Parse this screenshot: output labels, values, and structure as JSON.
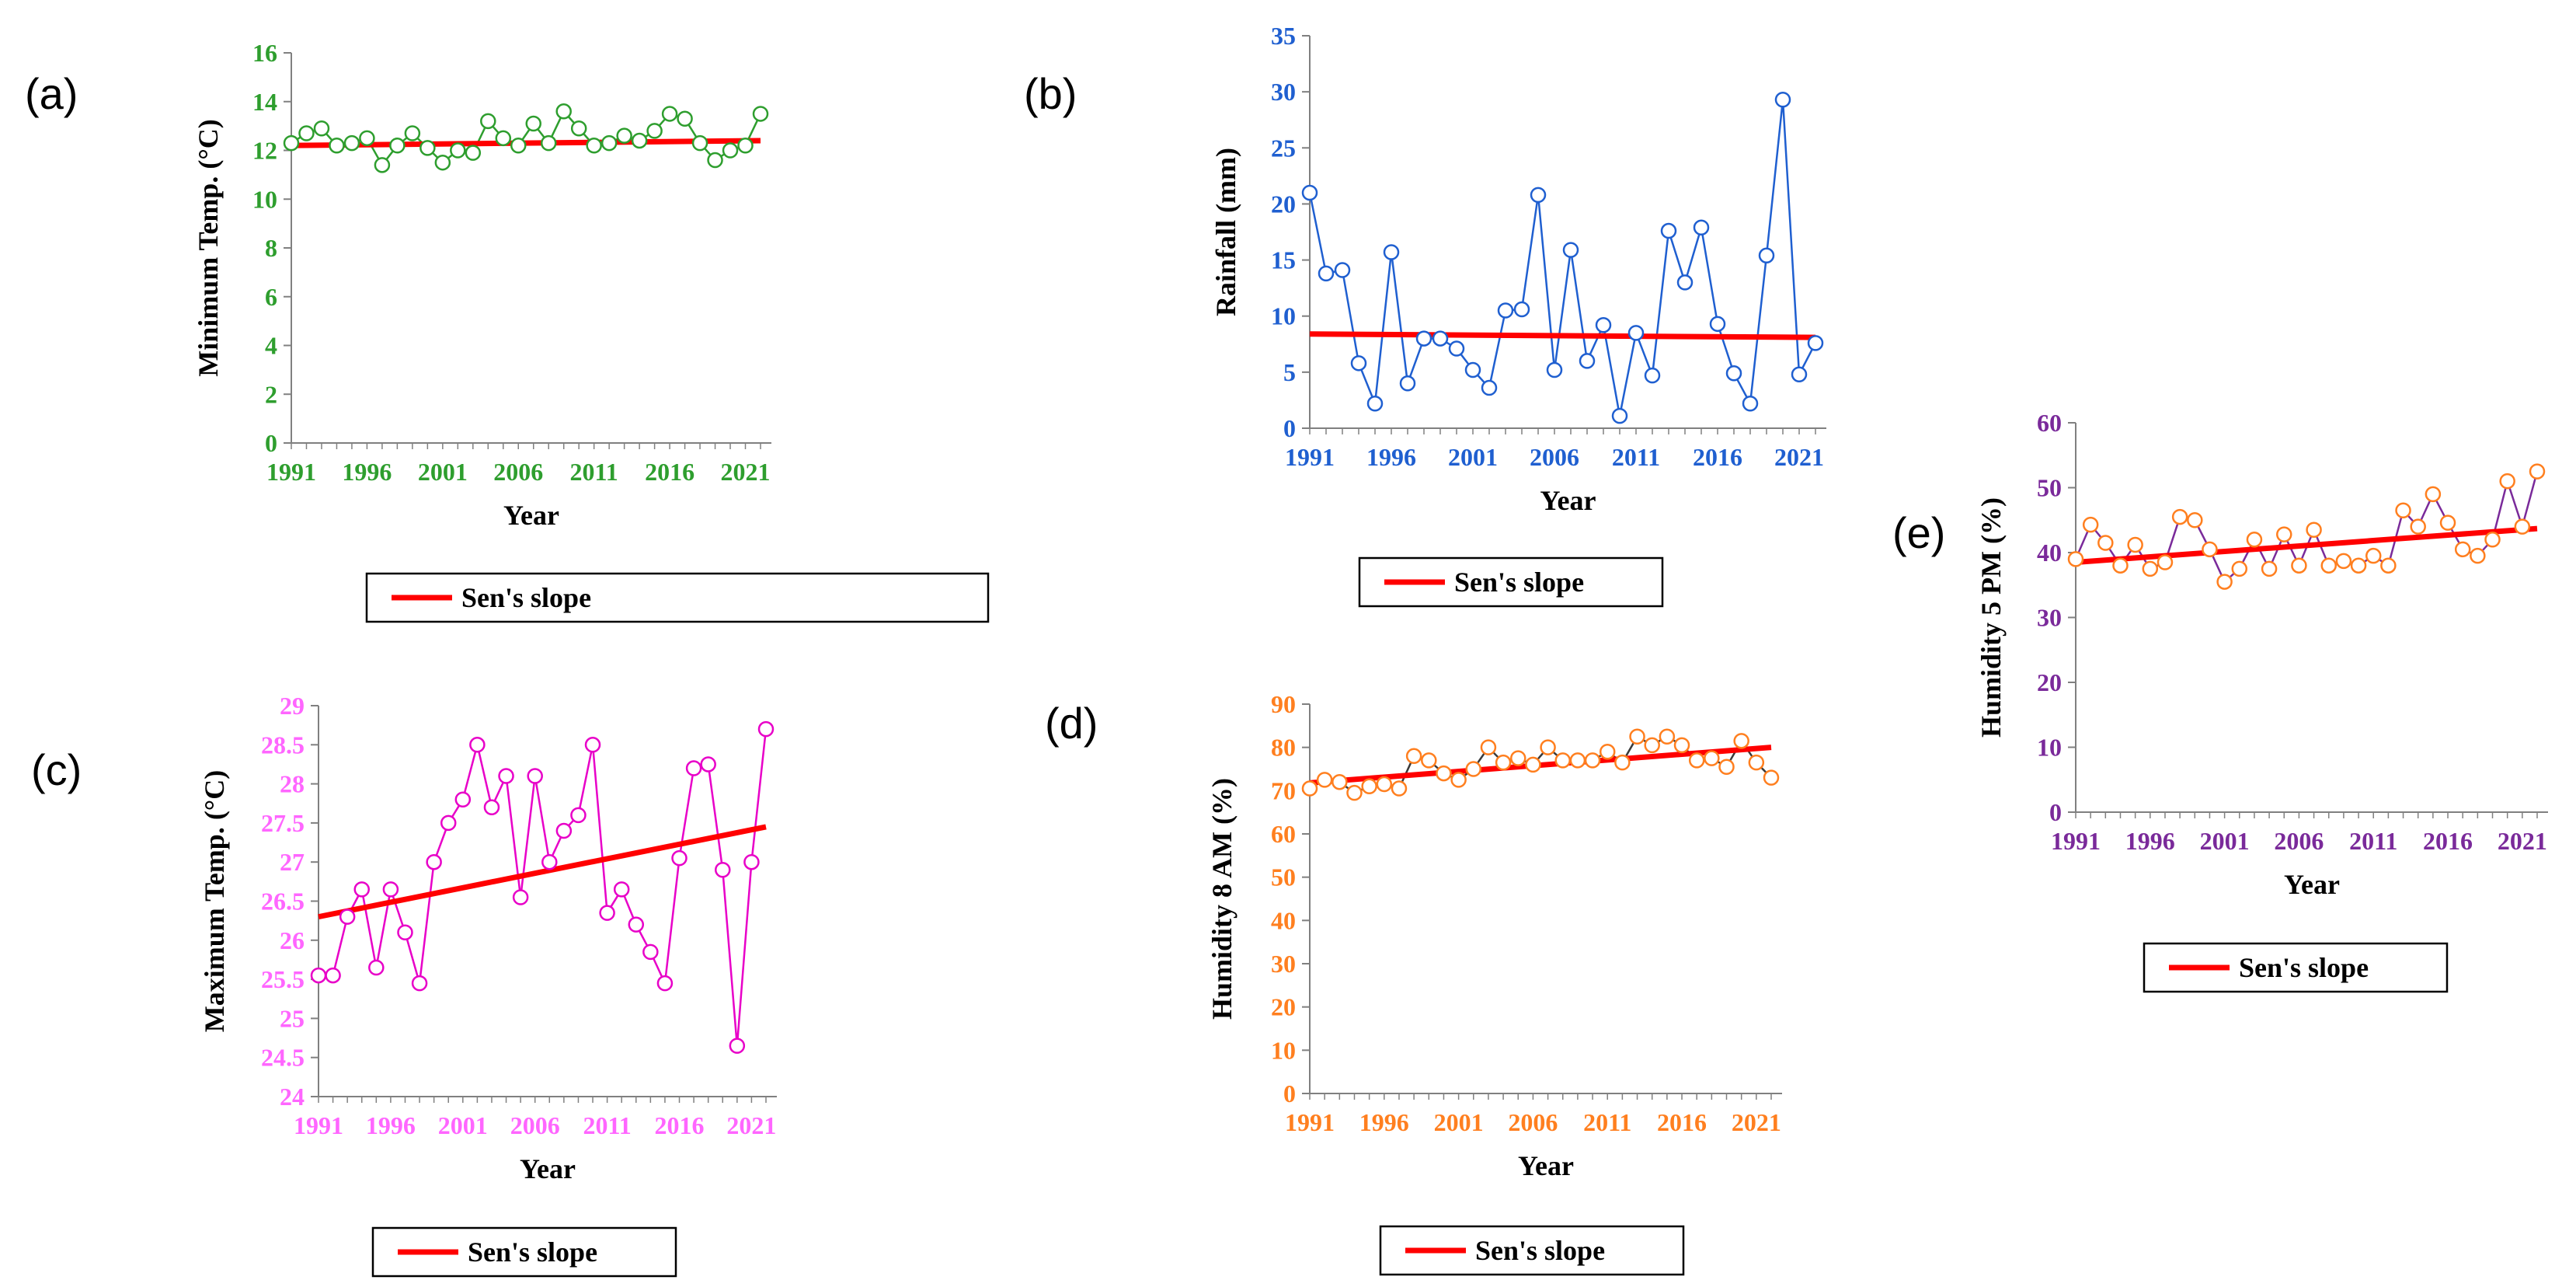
{
  "colors": {
    "trend": "#FF0000",
    "axis": "#808080",
    "minimum_temp": "#2E9E2E",
    "rainfall": "#1F5FD0",
    "maximum_temp": "#E800C8",
    "maximum_temp_text": "#FF66FF",
    "humidity_8am_marker": "#FF7F1F",
    "humidity_8am_line": "#3A3A3A",
    "humidity_5pm_marker": "#FF7F1F",
    "humidity_5pm_line": "#7A2A9A",
    "humidity_5pm_text": "#7A2A9A"
  },
  "legend_label": "Sen's slope",
  "chart_data": [
    {
      "panel": "(a)",
      "type": "line",
      "xlabel": "Year",
      "ylabel": "Minimum Temp.  (°C)",
      "ylim": [
        0,
        16
      ],
      "yticks": [
        "0",
        "2",
        "4",
        "6",
        "8",
        "10",
        "12",
        "14",
        "16"
      ],
      "xticks": [
        "1991",
        "1996",
        "2001",
        "2006",
        "2011",
        "2016",
        "2021"
      ],
      "x": [
        1991,
        1992,
        1993,
        1994,
        1995,
        1996,
        1997,
        1998,
        1999,
        2000,
        2001,
        2002,
        2003,
        2004,
        2005,
        2006,
        2007,
        2008,
        2009,
        2010,
        2011,
        2012,
        2013,
        2014,
        2015,
        2016,
        2017,
        2018,
        2019,
        2020,
        2021,
        2022
      ],
      "series": [
        {
          "values": [
            12.3,
            12.7,
            12.9,
            12.2,
            12.3,
            12.5,
            11.4,
            12.2,
            12.7,
            12.1,
            11.5,
            12.0,
            11.9,
            13.2,
            12.5,
            12.2,
            13.1,
            12.3,
            13.6,
            12.9,
            12.2,
            12.3,
            12.6,
            12.4,
            12.8,
            13.5,
            13.3,
            12.3,
            11.6,
            12.0,
            12.2,
            13.5
          ]
        }
      ],
      "trend": {
        "name": "Sen's slope",
        "x": [
          1991,
          2022
        ],
        "values": [
          12.2,
          12.4
        ]
      },
      "legend": "bottom"
    },
    {
      "panel": "(b)",
      "type": "line",
      "xlabel": "Year",
      "ylabel": "Rainfall (mm)",
      "ylim": [
        0,
        35
      ],
      "yticks": [
        "0",
        "5",
        "10",
        "15",
        "20",
        "25",
        "30",
        "35"
      ],
      "xticks": [
        "1991",
        "1996",
        "2001",
        "2006",
        "2011",
        "2016",
        "2021"
      ],
      "x": [
        1991,
        1992,
        1993,
        1994,
        1995,
        1996,
        1997,
        1998,
        1999,
        2000,
        2001,
        2002,
        2003,
        2004,
        2005,
        2006,
        2007,
        2008,
        2009,
        2010,
        2011,
        2012,
        2013,
        2014,
        2015,
        2016,
        2017,
        2018,
        2019,
        2020,
        2021,
        2022
      ],
      "series": [
        {
          "values": [
            21.0,
            13.8,
            14.1,
            5.8,
            2.2,
            15.7,
            4.0,
            8.0,
            8.0,
            7.1,
            5.2,
            3.6,
            10.5,
            10.6,
            20.8,
            5.2,
            15.9,
            6.0,
            9.2,
            1.1,
            8.5,
            4.7,
            17.6,
            13.0,
            17.9,
            9.3,
            4.9,
            2.2,
            15.4,
            29.3,
            4.8,
            7.6
          ]
        }
      ],
      "trend": {
        "name": "Sen's slope",
        "x": [
          1991,
          2022
        ],
        "values": [
          8.4,
          8.1
        ]
      },
      "legend": "bottom"
    },
    {
      "panel": "(c)",
      "type": "line",
      "xlabel": "Year",
      "ylabel": "Maximum Temp.  (°C)",
      "ylim": [
        24,
        29
      ],
      "yticks": [
        "24",
        "24.5",
        "25",
        "25.5",
        "26",
        "26.5",
        "27",
        "27.5",
        "28",
        "28.5",
        "29"
      ],
      "xticks": [
        "1991",
        "1996",
        "2001",
        "2006",
        "2011",
        "2016",
        "2021"
      ],
      "x": [
        1991,
        1992,
        1993,
        1994,
        1995,
        1996,
        1997,
        1998,
        1999,
        2000,
        2001,
        2002,
        2003,
        2004,
        2005,
        2006,
        2007,
        2008,
        2009,
        2010,
        2011,
        2012,
        2013,
        2014,
        2015,
        2016,
        2017,
        2018,
        2019,
        2020,
        2021,
        2022
      ],
      "series": [
        {
          "values": [
            25.55,
            25.55,
            26.3,
            26.65,
            25.65,
            26.65,
            26.1,
            25.45,
            27.0,
            27.5,
            27.8,
            28.5,
            27.7,
            28.1,
            26.55,
            28.1,
            27.0,
            27.4,
            27.6,
            28.5,
            26.35,
            26.65,
            26.2,
            25.85,
            25.45,
            27.05,
            28.2,
            28.25,
            26.9,
            24.65,
            27.0,
            28.7
          ]
        }
      ],
      "trend": {
        "name": "Sen's slope",
        "x": [
          1991,
          2022
        ],
        "values": [
          26.3,
          27.45
        ]
      },
      "legend": "bottom"
    },
    {
      "panel": "(d)",
      "type": "line",
      "xlabel": "Year",
      "ylabel": "Humidity 8 AM (%)",
      "ylim": [
        0,
        90
      ],
      "yticks": [
        "0",
        "10",
        "20",
        "30",
        "40",
        "50",
        "60",
        "70",
        "80",
        "90"
      ],
      "xticks": [
        "1991",
        "1996",
        "2001",
        "2006",
        "2011",
        "2016",
        "2021"
      ],
      "x": [
        1991,
        1992,
        1993,
        1994,
        1995,
        1996,
        1997,
        1998,
        1999,
        2000,
        2001,
        2002,
        2003,
        2004,
        2005,
        2006,
        2007,
        2008,
        2009,
        2010,
        2011,
        2012,
        2013,
        2014,
        2015,
        2016,
        2017,
        2018,
        2019,
        2020,
        2021,
        2022
      ],
      "series": [
        {
          "values": [
            70.5,
            72.5,
            72.0,
            69.5,
            71.0,
            71.5,
            70.5,
            78.0,
            77.0,
            74.0,
            72.5,
            75.0,
            80.0,
            76.5,
            77.5,
            76.0,
            80.0,
            77.0,
            77.0,
            77.0,
            79.0,
            76.5,
            82.5,
            80.5,
            82.5,
            80.5,
            77.0,
            77.5,
            75.5,
            81.5,
            76.5,
            73.0
          ]
        }
      ],
      "trend": {
        "name": "Sen's slope",
        "x": [
          1991,
          2022
        ],
        "values": [
          71.8,
          80.0
        ]
      },
      "legend": "bottom"
    },
    {
      "panel": "(e)",
      "type": "line",
      "xlabel": "Year",
      "ylabel": "Humidity 5 PM (%)",
      "ylim": [
        0,
        60
      ],
      "yticks": [
        "0",
        "10",
        "20",
        "30",
        "40",
        "50",
        "60"
      ],
      "xticks": [
        "1991",
        "1996",
        "2001",
        "2006",
        "2011",
        "2016",
        "2021"
      ],
      "x": [
        1991,
        1992,
        1993,
        1994,
        1995,
        1996,
        1997,
        1998,
        1999,
        2000,
        2001,
        2002,
        2003,
        2004,
        2005,
        2006,
        2007,
        2008,
        2009,
        2010,
        2011,
        2012,
        2013,
        2014,
        2015,
        2016,
        2017,
        2018,
        2019,
        2020,
        2021,
        2022
      ],
      "series": [
        {
          "values": [
            39.0,
            44.3,
            41.5,
            38.0,
            41.2,
            37.5,
            38.5,
            45.5,
            45.0,
            40.5,
            35.5,
            37.5,
            42.0,
            37.5,
            42.8,
            38.0,
            43.5,
            38.0,
            38.7,
            38.0,
            39.5,
            38.0,
            46.5,
            44.0,
            49.0,
            44.6,
            40.5,
            39.5,
            42.0,
            51.0,
            44.0,
            52.5
          ]
        }
      ],
      "trend": {
        "name": "Sen's slope",
        "x": [
          1991,
          2022
        ],
        "values": [
          38.5,
          43.7
        ]
      },
      "legend": "bottom"
    }
  ]
}
